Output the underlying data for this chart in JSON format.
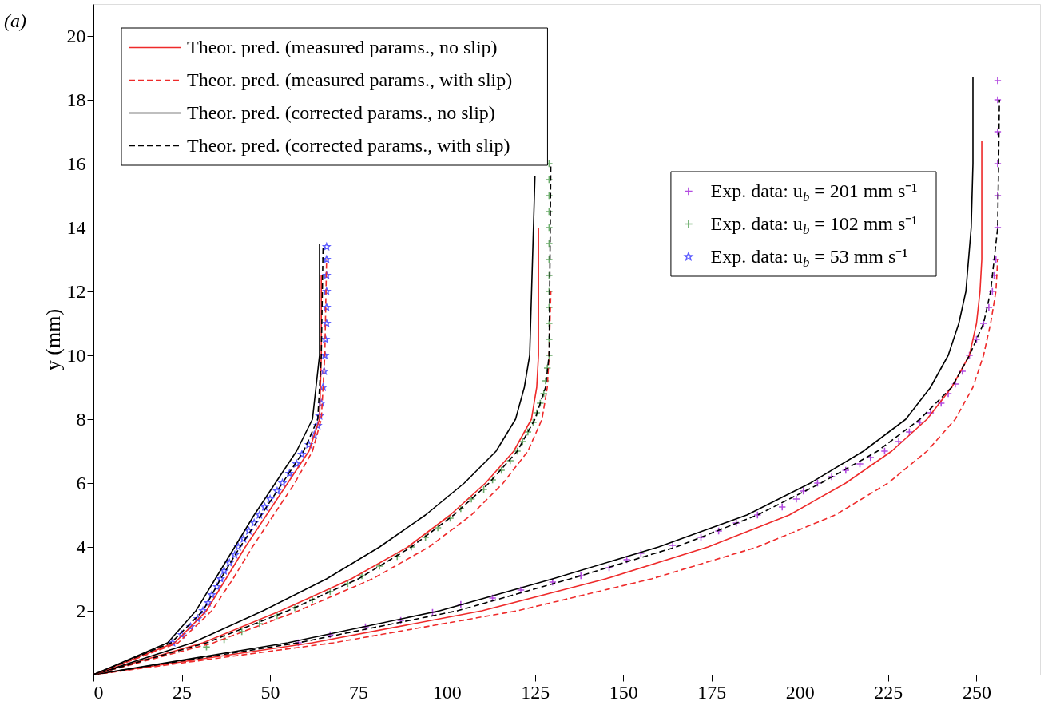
{
  "chart_data": {
    "type": "line",
    "ylabel": "y (mm)",
    "annotations": [
      "(a)"
    ],
    "xlim": [
      0,
      268
    ],
    "ylim": [
      0,
      21
    ],
    "xticks": [
      0,
      25,
      50,
      75,
      100,
      125,
      150,
      175,
      200,
      225,
      250
    ],
    "yticks": [
      2,
      4,
      6,
      8,
      10,
      12,
      14,
      16,
      18,
      20
    ],
    "grid": false,
    "legend": "top left",
    "series": [
      {
        "name": "Theor. pred. (measured params., no slip)",
        "color": "#ee2a2a",
        "line_style": "solid",
        "x": [
          0,
          62,
          110,
          145,
          174,
          197,
          213,
          226,
          236,
          243,
          248,
          250,
          251,
          251.5,
          251.5
        ],
        "values": [
          0,
          1,
          2,
          3,
          4,
          5,
          6,
          7,
          8,
          9,
          10,
          11,
          12,
          13,
          16.7
        ]
      },
      {
        "name": "Theor. pred. (measured params., with slip)",
        "color": "#ee2a2a",
        "line_style": "dashed",
        "x": [
          0,
          68,
          120,
          158,
          188,
          210,
          225,
          236,
          244,
          249,
          252,
          254,
          255.5,
          256
        ],
        "values": [
          0,
          1,
          2,
          3,
          4,
          5,
          6,
          7,
          8,
          9,
          10,
          11,
          12,
          13
        ]
      },
      {
        "name": "Theor. pred. (corrected params., no slip)",
        "color": "#000000",
        "line_style": "solid",
        "x": [
          0,
          55,
          98,
          130,
          160,
          185,
          203,
          218,
          230,
          237,
          242,
          245,
          247,
          248.5,
          249,
          249
        ],
        "values": [
          0,
          1,
          2,
          3,
          4,
          5,
          6,
          7,
          8,
          9,
          10,
          11,
          12,
          14,
          16,
          18.7
        ]
      },
      {
        "name": "Theor. pred. (corrected params., with slip)",
        "color": "#000000",
        "line_style": "dashed",
        "x": [
          0,
          58,
          103,
          135,
          165,
          188,
          206,
          222,
          234,
          243,
          248,
          252,
          254,
          256,
          256.5
        ],
        "values": [
          0,
          1,
          2,
          3,
          4,
          5,
          6,
          7,
          8,
          9,
          10,
          11,
          12,
          14,
          18
        ]
      },
      {
        "color": "#ee2a2a",
        "line_style": "solid",
        "x": [
          0,
          31,
          53,
          73,
          89,
          101,
          111,
          119,
          124,
          125.5,
          126,
          126
        ],
        "values": [
          0,
          1,
          2,
          3,
          4,
          5,
          6,
          7,
          8,
          9,
          10,
          14
        ]
      },
      {
        "color": "#ee2a2a",
        "line_style": "dashed",
        "x": [
          0,
          34,
          58,
          79,
          95,
          107,
          116,
          123,
          127,
          128.5,
          129,
          129.5
        ],
        "values": [
          0,
          1,
          2,
          3,
          4,
          5,
          6,
          7,
          8,
          9,
          10,
          12
        ]
      },
      {
        "color": "#000000",
        "line_style": "solid",
        "x": [
          0,
          28,
          48,
          66,
          81,
          94,
          105,
          114,
          119.5,
          122,
          123.5,
          125
        ],
        "values": [
          0,
          1,
          2,
          3,
          4,
          5,
          6,
          7,
          8,
          9,
          10,
          15.6
        ]
      },
      {
        "color": "#000000",
        "line_style": "dashed",
        "x": [
          0,
          32,
          55,
          75,
          90,
          102,
          112,
          120,
          125,
          128,
          129,
          129.5
        ],
        "values": [
          0,
          1,
          2,
          3,
          4,
          5,
          6,
          7,
          8,
          9,
          10,
          16
        ]
      },
      {
        "color": "#ee2a2a",
        "line_style": "solid",
        "x": [
          0,
          23,
          32,
          37.5,
          43,
          49,
          55,
          61,
          64,
          64.5,
          64.5
        ],
        "values": [
          0,
          1,
          2,
          3,
          4,
          5,
          6,
          7,
          8,
          10,
          12.5
        ]
      },
      {
        "color": "#ee2a2a",
        "line_style": "dashed",
        "x": [
          0,
          24,
          33.5,
          39.5,
          45,
          51,
          57,
          62,
          64.5,
          65.5,
          66
        ],
        "values": [
          0,
          1,
          2,
          3,
          4,
          5,
          6,
          7,
          8,
          10,
          13
        ]
      },
      {
        "color": "#000000",
        "line_style": "solid",
        "x": [
          0,
          21,
          29,
          34.5,
          40,
          45.5,
          51.5,
          57.5,
          62,
          64,
          64
        ],
        "values": [
          0,
          1,
          2,
          3,
          4,
          5,
          6,
          7,
          8,
          10,
          13.5
        ]
      },
      {
        "color": "#000000",
        "line_style": "dashed",
        "x": [
          0,
          22,
          31,
          36,
          41.5,
          47.5,
          53.5,
          59.5,
          63.5,
          64.5,
          65
        ],
        "values": [
          0,
          1,
          2,
          3,
          4,
          5,
          6,
          7,
          8,
          10,
          13.4
        ]
      },
      {
        "name": "Exp. data: u$_{b}$ = 201 mm s⁻¹",
        "type": "scatter",
        "marker": "cross",
        "color": "#9400d3",
        "x": [
          58,
          67,
          77,
          87,
          96,
          104,
          113,
          121,
          130,
          138,
          146,
          151,
          155,
          164,
          172,
          177,
          182,
          188,
          195,
          199,
          201,
          205,
          209,
          213,
          217,
          220,
          224,
          228,
          231,
          234,
          237,
          240,
          242,
          244,
          246,
          248,
          250,
          252,
          253.5,
          254.5,
          255,
          255.5,
          256,
          256,
          256,
          256,
          256,
          256
        ],
        "values": [
          1.0,
          1.25,
          1.5,
          1.7,
          1.95,
          2.2,
          2.4,
          2.65,
          2.9,
          3.1,
          3.35,
          3.6,
          3.8,
          4.05,
          4.3,
          4.5,
          4.75,
          5.0,
          5.25,
          5.5,
          5.75,
          6.0,
          6.2,
          6.4,
          6.6,
          6.8,
          7.0,
          7.3,
          7.6,
          7.9,
          8.2,
          8.5,
          8.8,
          9.1,
          9.5,
          10,
          10.5,
          11,
          11.5,
          12,
          12.5,
          13,
          14,
          15,
          16,
          17,
          18,
          18.6
        ]
      },
      {
        "name": "Exp. data: u$_{b}$ = 102 mm s⁻¹",
        "type": "scatter",
        "marker": "cross",
        "color": "#2e8b2e",
        "x": [
          32,
          37,
          42,
          47,
          52,
          57,
          62,
          67,
          72,
          76,
          81,
          86,
          90,
          94,
          97.5,
          101,
          104,
          107,
          110.5,
          113,
          115.5,
          118,
          120,
          121.5,
          123,
          124.5,
          125.5,
          126.5,
          127.5,
          128,
          128.5,
          129,
          129,
          129,
          129,
          129,
          129,
          129,
          129,
          129,
          129,
          129,
          129,
          129
        ],
        "values": [
          0.87,
          1.1,
          1.35,
          1.6,
          1.85,
          2.1,
          2.35,
          2.6,
          2.85,
          3.1,
          3.4,
          3.7,
          4.0,
          4.3,
          4.6,
          4.9,
          5.2,
          5.5,
          5.8,
          6.1,
          6.4,
          6.7,
          7.0,
          7.3,
          7.6,
          7.9,
          8.2,
          8.5,
          8.8,
          9.2,
          9.6,
          10,
          10.5,
          11,
          11.5,
          12,
          12.5,
          13,
          13.5,
          14,
          14.5,
          15,
          15.5,
          16
        ]
      },
      {
        "name": "Exp. data: u$_{b}$ = 53 mm s⁻¹",
        "type": "scatter",
        "marker": "star",
        "color": "#1a1aff",
        "x": [
          22.4,
          25,
          27.5,
          29.5,
          31,
          32.5,
          33.5,
          35,
          36,
          37,
          38.5,
          40,
          41,
          42.5,
          44,
          45.5,
          47,
          48.5,
          50,
          52,
          53.5,
          55.5,
          57.5,
          59,
          61,
          62.5,
          63.5,
          64,
          64.5,
          65,
          65.3,
          65.5,
          65.7,
          66,
          66,
          66,
          66,
          66,
          66
        ],
        "values": [
          1.0,
          1.25,
          1.5,
          1.75,
          2.0,
          2.25,
          2.5,
          2.75,
          3.0,
          3.25,
          3.5,
          3.75,
          4.0,
          4.25,
          4.5,
          4.75,
          5.0,
          5.25,
          5.5,
          5.75,
          6.0,
          6.3,
          6.6,
          6.9,
          7.2,
          7.5,
          7.8,
          8.1,
          8.5,
          9,
          9.5,
          10,
          10.5,
          11,
          11.5,
          12,
          12.5,
          13,
          13.4
        ]
      }
    ]
  }
}
